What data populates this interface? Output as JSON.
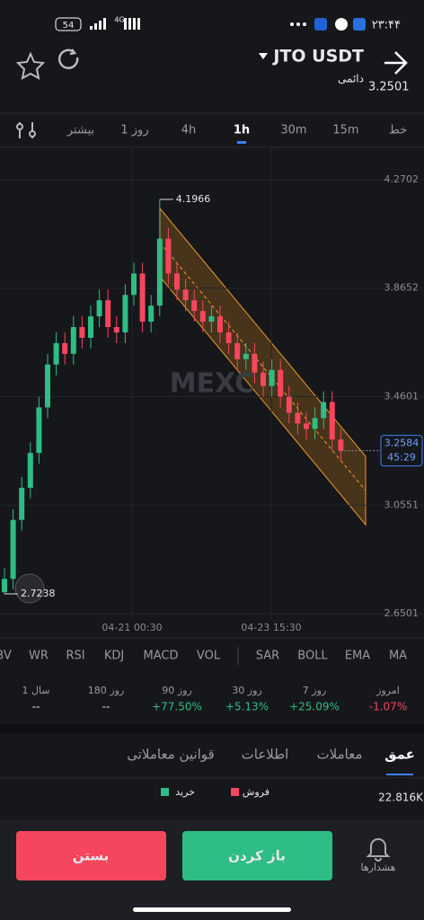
{
  "status_bar": {
    "battery": "54",
    "network": "4G",
    "time": "۲۳:۴۴"
  },
  "header": {
    "title": "JTO USDT",
    "subtitle": "دائمی",
    "price": "3.2501"
  },
  "timeframes": [
    "خط",
    "15m",
    "30m",
    "1h",
    "4h",
    "1 روز",
    "بیشتر"
  ],
  "active_timeframe": "1h",
  "chart_data": {
    "type": "candlestick",
    "up_color": "#2ebd85",
    "down_color": "#f6465d",
    "open": [
      2.73,
      2.78,
      3.0,
      3.12,
      3.25,
      3.42,
      3.58,
      3.66,
      3.62,
      3.72,
      3.68,
      3.76,
      3.82,
      3.72,
      3.7,
      3.84,
      3.92,
      3.74,
      3.8,
      4.05,
      3.92,
      3.86,
      3.82,
      3.78,
      3.74,
      3.76,
      3.7,
      3.66,
      3.6,
      3.62,
      3.55,
      3.5,
      3.56,
      3.46,
      3.4,
      3.36,
      3.34,
      3.38,
      3.44,
      3.3
    ],
    "high": [
      2.82,
      3.04,
      3.16,
      3.29,
      3.46,
      3.62,
      3.7,
      3.7,
      3.76,
      3.76,
      3.8,
      3.86,
      3.86,
      3.76,
      3.88,
      3.96,
      3.96,
      3.84,
      4.1966,
      4.09,
      3.96,
      3.9,
      3.86,
      3.82,
      3.8,
      3.8,
      3.74,
      3.7,
      3.66,
      3.66,
      3.59,
      3.6,
      3.6,
      3.5,
      3.44,
      3.4,
      3.42,
      3.48,
      3.48,
      3.34
    ],
    "low": [
      2.7238,
      2.74,
      2.96,
      3.08,
      3.21,
      3.38,
      3.54,
      3.58,
      3.58,
      3.64,
      3.64,
      3.72,
      3.68,
      3.66,
      3.66,
      3.8,
      3.7,
      3.7,
      3.76,
      3.88,
      3.82,
      3.78,
      3.74,
      3.7,
      3.7,
      3.66,
      3.62,
      3.56,
      3.56,
      3.51,
      3.46,
      3.46,
      3.42,
      3.36,
      3.32,
      3.3,
      3.3,
      3.34,
      3.26,
      3.22
    ],
    "close": [
      2.78,
      3.0,
      3.12,
      3.25,
      3.42,
      3.58,
      3.66,
      3.62,
      3.72,
      3.68,
      3.76,
      3.82,
      3.72,
      3.7,
      3.84,
      3.92,
      3.74,
      3.8,
      4.05,
      3.92,
      3.86,
      3.82,
      3.78,
      3.74,
      3.76,
      3.7,
      3.66,
      3.6,
      3.62,
      3.55,
      3.5,
      3.56,
      3.46,
      3.4,
      3.36,
      3.34,
      3.38,
      3.44,
      3.3,
      3.2584
    ],
    "ylim": [
      2.6266,
      4.3876
    ],
    "yticks": [
      4.2702,
      3.8652,
      3.4601,
      3.0551,
      2.6501
    ],
    "xtick_labels": [
      "04-21 00:30",
      "04-23 15:30"
    ],
    "high_label": "4.1966",
    "low_label": "2.7238",
    "last_price": "3.2584",
    "countdown": "45:29",
    "watermark": "MEXC"
  },
  "indicators": [
    "BV",
    "WR",
    "RSI",
    "KDJ",
    "MACD",
    "VOL",
    "SAR",
    "BOLL",
    "EMA",
    "MA"
  ],
  "stats": [
    {
      "label": "امروز",
      "value": "-1.07%"
    },
    {
      "label": "7 روز",
      "value": "+25.09%"
    },
    {
      "label": "30 روز",
      "value": "+5.13%"
    },
    {
      "label": "90 روز",
      "value": "+77.50%"
    },
    {
      "label": "180 روز",
      "value": "--"
    },
    {
      "label": "1 سال",
      "value": "--"
    }
  ],
  "tabs": [
    "عمق",
    "معاملات",
    "اطلاعات",
    "قوانین معاملاتی"
  ],
  "legend": {
    "buy": "خرید",
    "sell": "فروش"
  },
  "depth_value": "22.816K",
  "bottom": {
    "alerts": "هشدارها",
    "open": "باز کردن",
    "close": "بستن"
  }
}
